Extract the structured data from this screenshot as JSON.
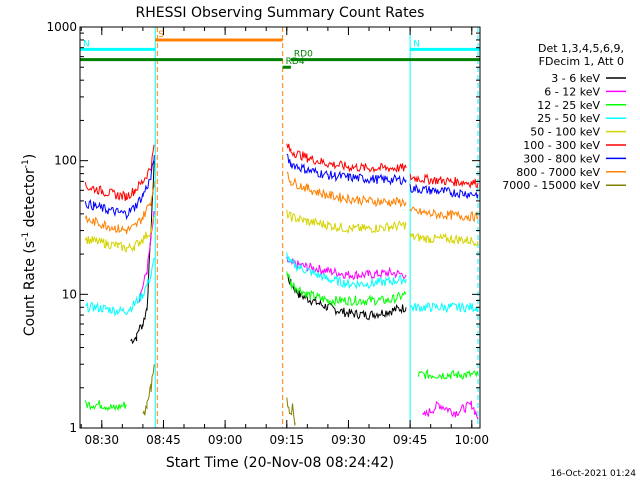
{
  "chart_data": {
    "type": "line",
    "title": "RHESSI Observing Summary Count Rates",
    "xlabel": "Start Time (20-Nov-08 08:24:42)",
    "ylabel": "Count Rate (s⁻¹ detector⁻¹)",
    "ylabel_parts": {
      "a": "Count Rate (s",
      "b": "-1",
      "c": " detector",
      "d": "-1",
      "e": ")"
    },
    "y_scale": "log",
    "ylim": [
      1,
      1000
    ],
    "xlim": [
      "08:24:42",
      "10:02:00"
    ],
    "x_ticks": [
      "08:30",
      "08:45",
      "09:00",
      "09:15",
      "09:30",
      "09:45",
      "10:00"
    ],
    "y_ticks": [
      {
        "value": 1,
        "label": "1"
      },
      {
        "value": 10,
        "label": "10"
      },
      {
        "value": 100,
        "label": "100"
      },
      {
        "value": 1000,
        "label": "1000"
      }
    ],
    "legend_header": [
      "Det 1,3,4,5,6,9,",
      "FDecim 1, Att 0"
    ],
    "legend_position": "right",
    "timestamp": "16-Oct-2021 01:24",
    "series": [
      {
        "name": "3 - 6 keV",
        "color": "#000000",
        "segments": [
          {
            "x": [
              "08:37:00",
              "08:38:30",
              "08:39:00",
              "08:40:00",
              "08:41:00",
              "08:42:00",
              "08:42:45"
            ],
            "y": [
              4.5,
              4.8,
              5.5,
              6,
              8,
              30,
              100
            ]
          },
          {
            "x": [
              "09:15:00",
              "09:16:00",
              "09:18:00",
              "09:21:00",
              "09:25:00",
              "09:30:00",
              "09:35:00",
              "09:40:00",
              "09:44:00"
            ],
            "y": [
              14,
              12,
              10,
              9,
              8,
              7.2,
              7,
              7.5,
              8
            ]
          }
        ]
      },
      {
        "name": "6 - 12 keV",
        "color": "#ff00ff",
        "segments": [
          {
            "x": [
              "08:39:00",
              "08:41:00",
              "08:42:45"
            ],
            "y": [
              9,
              15,
              40
            ]
          },
          {
            "x": [
              "09:15:00",
              "09:16:00",
              "09:20:00",
              "09:25:00",
              "09:30:00",
              "09:35:00",
              "09:40:00",
              "09:44:00"
            ],
            "y": [
              18,
              17,
              16,
              15,
              14,
              14,
              14.5,
              14
            ]
          },
          {
            "x": [
              "09:48:00",
              "09:52:00",
              "09:56:00",
              "10:00:00",
              "10:01:30"
            ],
            "y": [
              1.2,
              1.5,
              1.3,
              1.5,
              1.2
            ]
          }
        ]
      },
      {
        "name": "12 - 25 keV",
        "color": "#00ff00",
        "segments": [
          {
            "x": [
              "08:26:00",
              "08:30:00",
              "08:33:00",
              "08:36:00"
            ],
            "y": [
              1.5,
              1.5,
              1.4,
              1.5
            ]
          },
          {
            "x": [
              "09:15:00",
              "09:16:00",
              "09:20:00",
              "09:25:00",
              "09:30:00",
              "09:35:00",
              "09:40:00",
              "09:44:00"
            ],
            "y": [
              15,
              12,
              10,
              9,
              9,
              9,
              9,
              10
            ]
          },
          {
            "x": [
              "09:47:00",
              "09:50:00",
              "09:55:00",
              "10:01:30"
            ],
            "y": [
              2.5,
              2.5,
              2.5,
              2.5
            ]
          }
        ]
      },
      {
        "name": "25 - 50 keV",
        "color": "#00ffff",
        "segments": [
          {
            "x": [
              "08:26:00",
              "08:28:00",
              "08:31:00",
              "08:34:00",
              "08:36:00",
              "08:38:00",
              "08:40:00",
              "08:42:00",
              "08:42:45"
            ],
            "y": [
              8,
              8,
              7.8,
              7.5,
              7.5,
              8.5,
              10,
              14,
              18
            ]
          },
          {
            "x": [
              "09:15:00",
              "09:16:00",
              "09:20:00",
              "09:25:00",
              "09:30:00",
              "09:35:00",
              "09:40:00",
              "09:44:00"
            ],
            "y": [
              20,
              17,
              15,
              13,
              12,
              12,
              12.5,
              13
            ]
          },
          {
            "x": [
              "09:45:00",
              "09:50:00",
              "09:55:00",
              "10:01:30"
            ],
            "y": [
              8,
              8,
              8,
              8
            ]
          }
        ]
      },
      {
        "name": "50 - 100 keV",
        "color": "#d4d400",
        "segments": [
          {
            "x": [
              "08:26:00",
              "08:28:00",
              "08:31:00",
              "08:34:00",
              "08:36:00",
              "08:38:00",
              "08:40:00",
              "08:42:00",
              "08:42:45"
            ],
            "y": [
              26,
              25,
              24,
              23,
              22,
              23,
              26,
              30,
              38
            ]
          },
          {
            "x": [
              "09:15:00",
              "09:16:00",
              "09:20:00",
              "09:25:00",
              "09:30:00",
              "09:35:00",
              "09:40:00",
              "09:44:00"
            ],
            "y": [
              40,
              38,
              35,
              33,
              31,
              31,
              32,
              33
            ]
          },
          {
            "x": [
              "09:45:00",
              "09:50:00",
              "09:55:00",
              "10:01:30"
            ],
            "y": [
              27,
              26,
              26,
              25
            ]
          }
        ]
      },
      {
        "name": "100 - 300 keV",
        "color": "#ff0000",
        "segments": [
          {
            "x": [
              "08:26:00",
              "08:28:00",
              "08:31:00",
              "08:34:00",
              "08:36:00",
              "08:38:00",
              "08:40:00",
              "08:42:00",
              "08:42:45"
            ],
            "y": [
              64,
              62,
              58,
              55,
              54,
              60,
              70,
              90,
              130
            ]
          },
          {
            "x": [
              "09:15:00",
              "09:16:00",
              "09:20:00",
              "09:25:00",
              "09:30:00",
              "09:35:00",
              "09:40:00",
              "09:44:00"
            ],
            "y": [
              130,
              118,
              105,
              95,
              90,
              88,
              88,
              88
            ]
          },
          {
            "x": [
              "09:45:00",
              "09:50:00",
              "09:55:00",
              "10:01:30"
            ],
            "y": [
              75,
              72,
              70,
              68
            ]
          }
        ]
      },
      {
        "name": "300 - 800 keV",
        "color": "#0000ff",
        "segments": [
          {
            "x": [
              "08:26:00",
              "08:28:00",
              "08:31:00",
              "08:34:00",
              "08:36:00",
              "08:38:00",
              "08:40:00",
              "08:42:00",
              "08:42:45"
            ],
            "y": [
              48,
              46,
              43,
              41,
              40,
              45,
              55,
              75,
              110
            ]
          },
          {
            "x": [
              "09:15:00",
              "09:16:00",
              "09:20:00",
              "09:25:00",
              "09:30:00",
              "09:35:00",
              "09:40:00",
              "09:44:00"
            ],
            "y": [
              105,
              95,
              85,
              78,
              75,
              73,
              72,
              72
            ]
          },
          {
            "x": [
              "09:45:00",
              "09:50:00",
              "09:55:00",
              "10:01:30"
            ],
            "y": [
              62,
              60,
              58,
              56
            ]
          }
        ]
      },
      {
        "name": "800 - 7000 keV",
        "color": "#ff8000",
        "segments": [
          {
            "x": [
              "08:26:00",
              "08:28:00",
              "08:31:00",
              "08:34:00",
              "08:36:00",
              "08:38:00",
              "08:40:00",
              "08:42:00",
              "08:42:45"
            ],
            "y": [
              36,
              35,
              33,
              31,
              30,
              32,
              38,
              50,
              70
            ]
          },
          {
            "x": [
              "09:15:00",
              "09:16:00",
              "09:20:00",
              "09:25:00",
              "09:30:00",
              "09:35:00",
              "09:40:00",
              "09:44:00"
            ],
            "y": [
              78,
              70,
              62,
              55,
              52,
              50,
              49,
              49
            ]
          },
          {
            "x": [
              "09:45:00",
              "09:50:00",
              "09:55:00",
              "10:01:30"
            ],
            "y": [
              42,
              40,
              39,
              38
            ]
          }
        ]
      },
      {
        "name": "7000 - 15000 keV",
        "color": "#808000",
        "segments": [
          {
            "x": [
              "08:40:00",
              "08:41:00",
              "08:42:00",
              "08:42:45"
            ],
            "y": [
              1.2,
              1.5,
              2,
              3
            ]
          },
          {
            "x": [
              "09:15:00",
              "09:15:40",
              "09:16:30",
              "09:17:00"
            ],
            "y": [
              1.8,
              1.2,
              1.5,
              1.1
            ]
          }
        ]
      }
    ],
    "flags": [
      {
        "label": "S",
        "color": "#ff8000",
        "x_start": "08:43:00",
        "x_end": "09:14:00",
        "y": 800
      },
      {
        "label": "N",
        "color": "#00ffff",
        "x_start": "08:24:42",
        "x_end": "08:43:00",
        "y": 680
      },
      {
        "label": "N",
        "color": "#00ffff",
        "x_start": "09:45:00",
        "x_end": "10:02:00",
        "y": 680
      },
      {
        "label": "",
        "color": "#008000",
        "x_start": "08:24:42",
        "x_end": "09:14:00",
        "y": 570
      },
      {
        "label": "RD0",
        "color": "#008000",
        "x_start": "09:16:00",
        "x_end": "10:02:00",
        "y": 570
      },
      {
        "label": "RD4",
        "color": "#008000",
        "x_start": "09:14:00",
        "x_end": "09:16:00",
        "y": 500
      }
    ],
    "vlines": [
      {
        "x": "08:43:00",
        "color": "#00ffff",
        "style": "solid"
      },
      {
        "x": "08:43:30",
        "color": "#ff8000",
        "style": "dashed"
      },
      {
        "x": "09:14:00",
        "color": "#ff8000",
        "style": "dashed"
      },
      {
        "x": "09:45:00",
        "color": "#00ffff",
        "style": "solid"
      },
      {
        "x": "10:01:30",
        "color": "#00ffff",
        "style": "dashed"
      }
    ]
  }
}
